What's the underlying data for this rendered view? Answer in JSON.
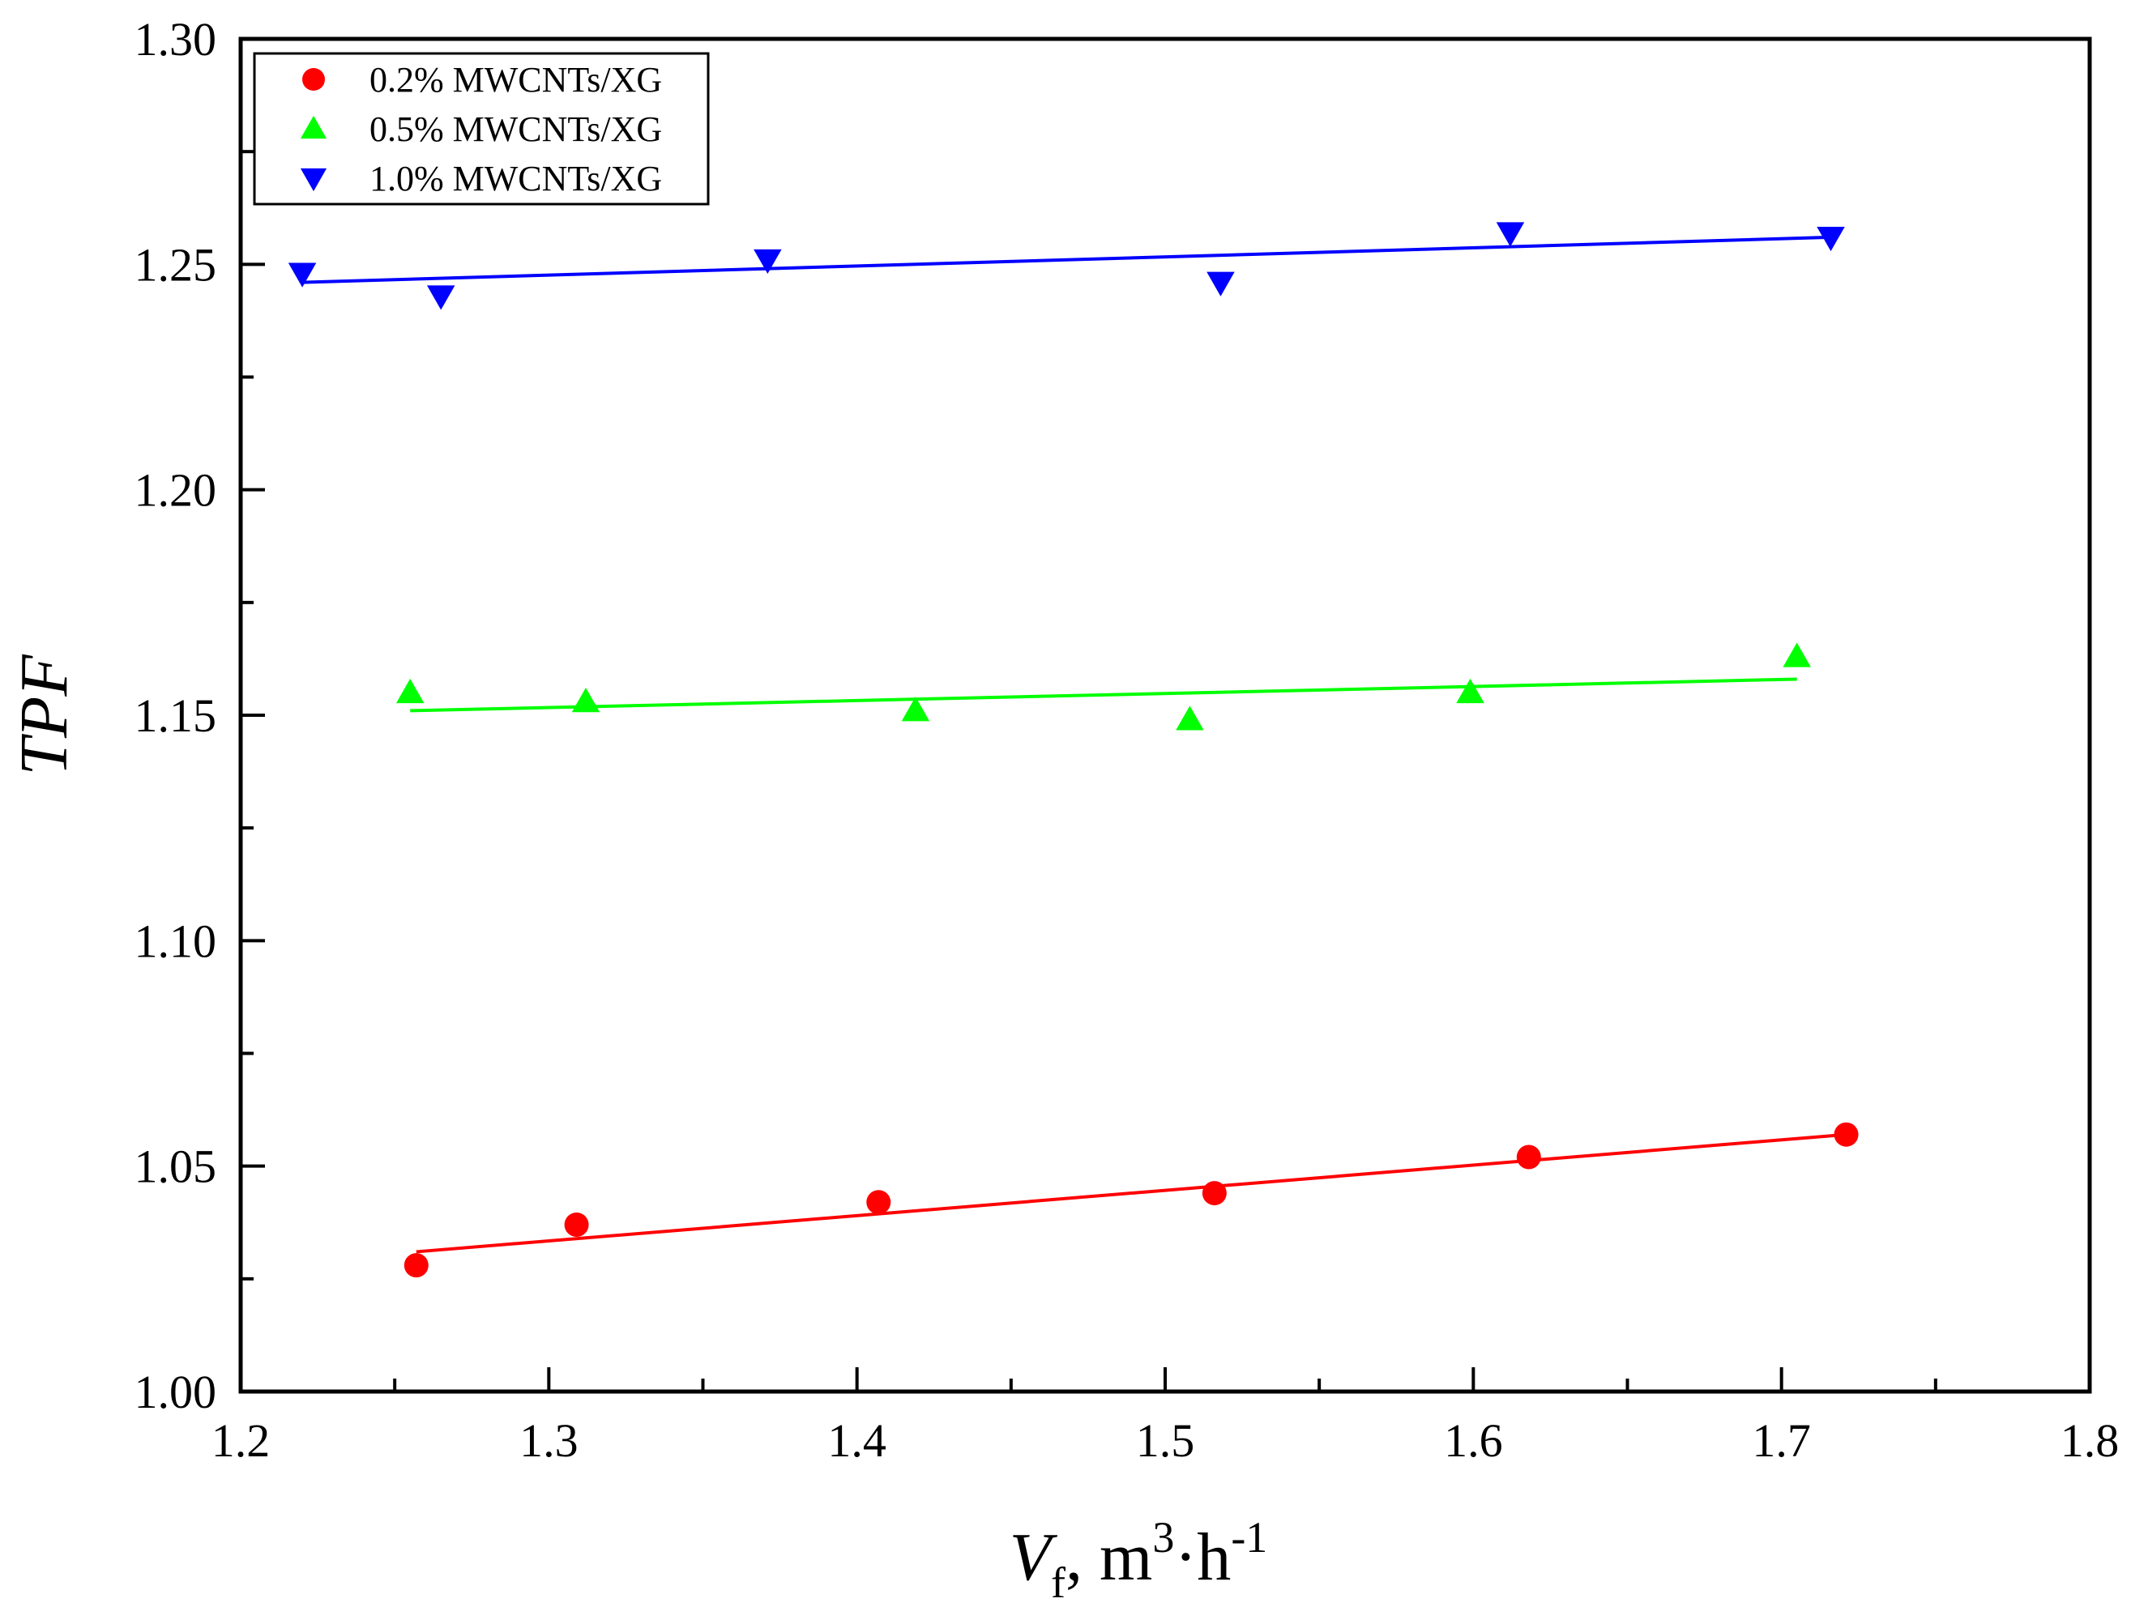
{
  "chart_data": {
    "type": "scatter",
    "title": "",
    "xlabel": {
      "main": "V",
      "sub": "f",
      "rest": ", m",
      "sup1": "3",
      "mid": "·h",
      "sup2": "-1"
    },
    "ylabel": "TPF",
    "xlim": [
      1.2,
      1.8
    ],
    "ylim": [
      1.0,
      1.3
    ],
    "x_ticks": [
      1.2,
      1.3,
      1.4,
      1.5,
      1.6,
      1.7,
      1.8
    ],
    "x_tick_labels": [
      "1.2",
      "1.3",
      "1.4",
      "1.5",
      "1.6",
      "1.7",
      "1.8"
    ],
    "x_minor_ticks": [
      1.25,
      1.35,
      1.45,
      1.55,
      1.65,
      1.75
    ],
    "y_ticks": [
      1.0,
      1.05,
      1.1,
      1.15,
      1.2,
      1.25,
      1.3
    ],
    "y_tick_labels": [
      "1.00",
      "1.05",
      "1.10",
      "1.15",
      "1.20",
      "1.25",
      "1.30"
    ],
    "y_minor_ticks": [
      1.025,
      1.075,
      1.125,
      1.175,
      1.225,
      1.275
    ],
    "grid": false,
    "legend_position": "top-left",
    "series": [
      {
        "name": "0.2% MWCNTs/XG",
        "marker": "circle",
        "color": "#ff0000",
        "x": [
          1.257,
          1.309,
          1.407,
          1.516,
          1.618,
          1.721
        ],
        "y": [
          1.028,
          1.037,
          1.042,
          1.044,
          1.052,
          1.057
        ],
        "fit": {
          "x": [
            1.257,
            1.721
          ],
          "y": [
            1.031,
            1.057
          ]
        }
      },
      {
        "name": "0.5% MWCNTs/XG",
        "marker": "triangle-up",
        "color": "#00ff00",
        "x": [
          1.255,
          1.312,
          1.419,
          1.508,
          1.599,
          1.705
        ],
        "y": [
          1.155,
          1.153,
          1.151,
          1.149,
          1.155,
          1.163
        ],
        "fit": {
          "x": [
            1.255,
            1.705
          ],
          "y": [
            1.151,
            1.158
          ]
        }
      },
      {
        "name": "1.0% MWCNTs/XG",
        "marker": "triangle-down",
        "color": "#0000ff",
        "x": [
          1.22,
          1.265,
          1.371,
          1.518,
          1.612,
          1.716
        ],
        "y": [
          1.248,
          1.243,
          1.251,
          1.246,
          1.257,
          1.256
        ],
        "fit": {
          "x": [
            1.22,
            1.716
          ],
          "y": [
            1.246,
            1.256
          ]
        }
      }
    ]
  }
}
